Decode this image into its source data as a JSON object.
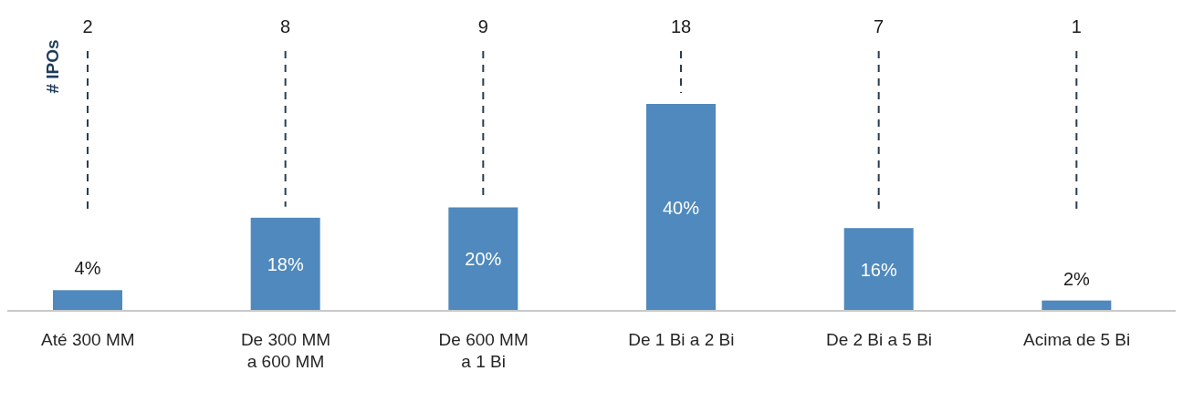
{
  "chart_data": {
    "type": "bar",
    "ylabel": "# IPOs",
    "categories": [
      "Até 300 MM",
      "De 300 MM a 600 MM",
      "De 600 MM a 1 Bi",
      "De 1 Bi a 2 Bi",
      "De 2 Bi a 5 Bi",
      "Acima de 5 Bi"
    ],
    "values": [
      4,
      18,
      20,
      40,
      16,
      2
    ],
    "value_labels": [
      "4%",
      "18%",
      "20%",
      "40%",
      "16%",
      "2%"
    ],
    "color": "#4f89bd",
    "annotations": [
      "2",
      "8",
      "9",
      "18",
      "7",
      "1"
    ],
    "legend": false,
    "grid": "x"
  }
}
